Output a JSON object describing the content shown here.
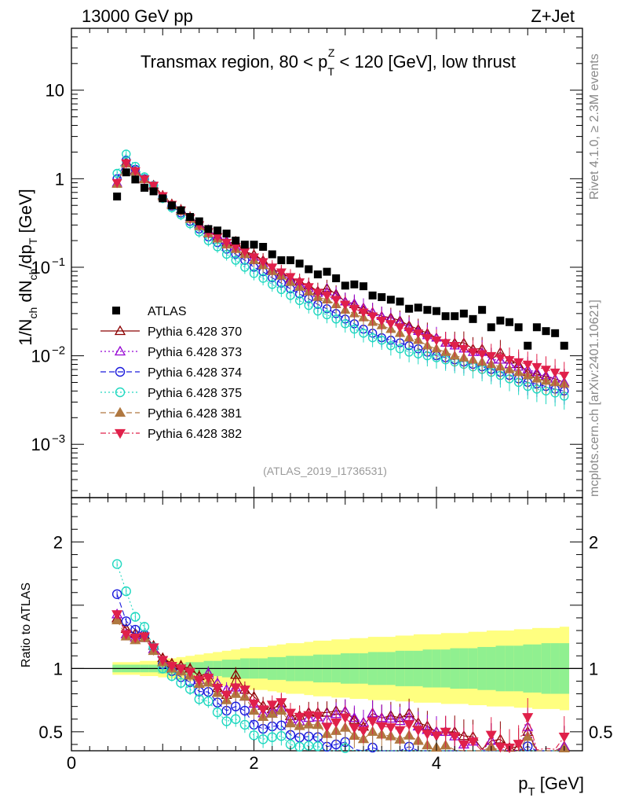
{
  "header": {
    "left": "13000 GeV pp",
    "right": "Z+Jet"
  },
  "side_labels": {
    "rivet": "Rivet 4.1.0, ≥ 2.3M events",
    "mcplots": "mcplots.cern.ch [arXiv:2401.10621]"
  },
  "chart_data": {
    "type": "scatter",
    "title": "Transmax region, 80 < p_T^Z < 120 [GeV], low thrust",
    "title_parts": {
      "pre": "Transmax region, 80 < p",
      "sub": "T",
      "sup": "Z",
      "post": " < 120 [GeV], low thrust"
    },
    "reference": "(ATLAS_2019_I1736531)",
    "xlabel": "p_T [GeV]",
    "xlabel_parts": {
      "main": "p",
      "sub": "T",
      "unit": " [GeV]"
    },
    "ylabel": "1/N_ch dN_ch/dp_T [GeV]",
    "ylabel_parts": {
      "a": "1/N",
      "a_sub": "ch",
      "b": " dN",
      "b_sub": "ch",
      "c": "/dp",
      "c_sub": "T",
      "d": " [GeV]"
    },
    "ratio_ylabel": "Ratio to ATLAS",
    "xlim": [
      0,
      5.6
    ],
    "ylim": [
      0.00025,
      50
    ],
    "yscale": "log",
    "ratio_ylim": [
      0.35,
      2.35
    ],
    "x_ticks": [
      {
        "v": 0,
        "label": "0"
      },
      {
        "v": 2,
        "label": "2"
      },
      {
        "v": 4,
        "label": "4"
      }
    ],
    "y_ticks": [
      {
        "v": 10,
        "label": "10",
        "exp": ""
      },
      {
        "v": 1,
        "label": "1",
        "exp": ""
      },
      {
        "v": 0.1,
        "label": "10",
        "exp": "−1"
      },
      {
        "v": 0.01,
        "label": "10",
        "exp": "−2"
      },
      {
        "v": 0.001,
        "label": "10",
        "exp": "−3"
      }
    ],
    "ratio_ticks": [
      {
        "v": 2,
        "label": "2"
      },
      {
        "v": 1,
        "label": "1"
      },
      {
        "v": 0.5,
        "label": "0.5"
      }
    ],
    "x": [
      0.5,
      0.6,
      0.7,
      0.8,
      0.9,
      1.0,
      1.1,
      1.2,
      1.3,
      1.4,
      1.5,
      1.6,
      1.7,
      1.8,
      1.9,
      2.0,
      2.1,
      2.2,
      2.3,
      2.4,
      2.5,
      2.6,
      2.7,
      2.8,
      2.9,
      3.0,
      3.1,
      3.2,
      3.3,
      3.4,
      3.5,
      3.6,
      3.7,
      3.8,
      3.9,
      4.0,
      4.1,
      4.2,
      4.3,
      4.4,
      4.5,
      4.6,
      4.7,
      4.8,
      4.9,
      5.0,
      5.1,
      5.2,
      5.3,
      5.4
    ],
    "data": {
      "name": "ATLAS",
      "values": [
        0.63,
        1.18,
        0.98,
        0.79,
        0.72,
        0.6,
        0.5,
        0.44,
        0.37,
        0.33,
        0.27,
        0.26,
        0.24,
        0.2,
        0.18,
        0.18,
        0.17,
        0.14,
        0.12,
        0.12,
        0.11,
        0.095,
        0.083,
        0.089,
        0.075,
        0.062,
        0.064,
        0.061,
        0.048,
        0.046,
        0.043,
        0.041,
        0.034,
        0.035,
        0.033,
        0.032,
        0.028,
        0.028,
        0.03,
        0.026,
        0.033,
        0.021,
        0.025,
        0.024,
        0.021,
        0.013,
        0.021,
        0.019,
        0.018,
        0.013
      ],
      "band_inner": [
        0.03,
        0.03,
        0.03,
        0.03,
        0.03,
        0.04,
        0.04,
        0.04,
        0.05,
        0.05,
        0.06,
        0.06,
        0.07,
        0.07,
        0.08,
        0.08,
        0.08,
        0.09,
        0.09,
        0.1,
        0.1,
        0.1,
        0.11,
        0.11,
        0.11,
        0.12,
        0.12,
        0.12,
        0.13,
        0.13,
        0.13,
        0.14,
        0.14,
        0.14,
        0.15,
        0.15,
        0.15,
        0.16,
        0.16,
        0.16,
        0.17,
        0.17,
        0.18,
        0.18,
        0.18,
        0.19,
        0.19,
        0.2,
        0.2,
        0.2
      ],
      "band_outer": [
        0.05,
        0.05,
        0.05,
        0.06,
        0.06,
        0.07,
        0.08,
        0.09,
        0.1,
        0.11,
        0.12,
        0.13,
        0.14,
        0.15,
        0.16,
        0.17,
        0.17,
        0.18,
        0.19,
        0.2,
        0.2,
        0.21,
        0.22,
        0.22,
        0.23,
        0.23,
        0.24,
        0.24,
        0.25,
        0.25,
        0.25,
        0.26,
        0.26,
        0.27,
        0.27,
        0.27,
        0.28,
        0.28,
        0.28,
        0.29,
        0.29,
        0.3,
        0.3,
        0.3,
        0.31,
        0.31,
        0.32,
        0.32,
        0.32,
        0.33
      ]
    },
    "series": [
      {
        "name": "Pythia 6.428 370",
        "color": "#8b0000",
        "marker": "triangle-open",
        "dash": "",
        "values": [
          0.88,
          1.55,
          1.25,
          1.0,
          0.85,
          0.65,
          0.52,
          0.45,
          0.37,
          0.31,
          0.26,
          0.22,
          0.19,
          0.19,
          0.15,
          0.14,
          0.12,
          0.095,
          0.087,
          0.075,
          0.069,
          0.062,
          0.054,
          0.058,
          0.05,
          0.041,
          0.038,
          0.033,
          0.031,
          0.028,
          0.027,
          0.025,
          0.022,
          0.02,
          0.018,
          0.016,
          0.014,
          0.014,
          0.014,
          0.012,
          0.012,
          0.009,
          0.011,
          0.009,
          0.008,
          0.0065,
          0.0062,
          0.0058,
          0.0055,
          0.005
        ]
      },
      {
        "name": "Pythia 6.428 373",
        "color": "#9400d3",
        "marker": "triangle-open",
        "dash": "2,3",
        "values": [
          0.9,
          1.5,
          1.22,
          0.98,
          0.83,
          0.63,
          0.5,
          0.43,
          0.35,
          0.3,
          0.26,
          0.23,
          0.2,
          0.17,
          0.14,
          0.13,
          0.11,
          0.092,
          0.083,
          0.072,
          0.064,
          0.058,
          0.051,
          0.053,
          0.048,
          0.041,
          0.039,
          0.035,
          0.031,
          0.028,
          0.026,
          0.024,
          0.021,
          0.019,
          0.017,
          0.016,
          0.014,
          0.013,
          0.012,
          0.011,
          0.011,
          0.009,
          0.009,
          0.008,
          0.0075,
          0.007,
          0.0065,
          0.006,
          0.0055,
          0.005
        ]
      },
      {
        "name": "Pythia 6.428 374",
        "color": "#1a1adc",
        "marker": "circle-open",
        "dash": "7,4",
        "values": [
          1.0,
          1.62,
          1.28,
          1.0,
          0.84,
          0.62,
          0.49,
          0.41,
          0.33,
          0.27,
          0.22,
          0.19,
          0.16,
          0.14,
          0.12,
          0.1,
          0.089,
          0.076,
          0.066,
          0.057,
          0.05,
          0.044,
          0.038,
          0.034,
          0.03,
          0.026,
          0.023,
          0.02,
          0.018,
          0.016,
          0.015,
          0.014,
          0.013,
          0.012,
          0.011,
          0.01,
          0.0095,
          0.009,
          0.0085,
          0.008,
          0.0075,
          0.007,
          0.0065,
          0.006,
          0.0055,
          0.005,
          0.0048,
          0.0045,
          0.0042,
          0.004
        ]
      },
      {
        "name": "Pythia 6.428 375",
        "color": "#20d8c0",
        "marker": "circle-open",
        "dash": "2,3",
        "values": [
          1.15,
          1.9,
          1.38,
          1.05,
          0.84,
          0.6,
          0.47,
          0.39,
          0.31,
          0.25,
          0.2,
          0.17,
          0.14,
          0.12,
          0.1,
          0.085,
          0.075,
          0.064,
          0.056,
          0.048,
          0.042,
          0.037,
          0.032,
          0.029,
          0.026,
          0.023,
          0.02,
          0.018,
          0.016,
          0.015,
          0.013,
          0.012,
          0.011,
          0.0105,
          0.01,
          0.0095,
          0.009,
          0.0085,
          0.008,
          0.0075,
          0.007,
          0.0065,
          0.006,
          0.0055,
          0.005,
          0.0045,
          0.0042,
          0.004,
          0.0038,
          0.0035
        ]
      },
      {
        "name": "Pythia 6.428 381",
        "color": "#b07840",
        "marker": "triangle-filled",
        "dash": "7,4",
        "values": [
          0.87,
          1.48,
          1.2,
          0.98,
          0.82,
          0.63,
          0.5,
          0.43,
          0.35,
          0.29,
          0.24,
          0.21,
          0.18,
          0.16,
          0.14,
          0.12,
          0.105,
          0.09,
          0.08,
          0.068,
          0.06,
          0.053,
          0.046,
          0.043,
          0.038,
          0.033,
          0.03,
          0.027,
          0.024,
          0.022,
          0.02,
          0.018,
          0.016,
          0.015,
          0.013,
          0.012,
          0.011,
          0.01,
          0.0095,
          0.009,
          0.0085,
          0.008,
          0.0075,
          0.007,
          0.0065,
          0.006,
          0.0055,
          0.0052,
          0.005,
          0.0048
        ]
      },
      {
        "name": "Pythia 6.428 382",
        "color": "#e0204a",
        "marker": "triangle-down-filled",
        "dash": "7,3,2,3",
        "values": [
          0.9,
          1.5,
          1.22,
          0.99,
          0.84,
          0.64,
          0.51,
          0.44,
          0.36,
          0.3,
          0.25,
          0.22,
          0.19,
          0.17,
          0.15,
          0.13,
          0.115,
          0.1,
          0.088,
          0.078,
          0.068,
          0.06,
          0.052,
          0.048,
          0.043,
          0.038,
          0.034,
          0.031,
          0.028,
          0.025,
          0.023,
          0.021,
          0.019,
          0.018,
          0.016,
          0.015,
          0.014,
          0.013,
          0.012,
          0.011,
          0.0105,
          0.01,
          0.0095,
          0.009,
          0.0085,
          0.008,
          0.0075,
          0.007,
          0.0065,
          0.006
        ]
      }
    ]
  }
}
